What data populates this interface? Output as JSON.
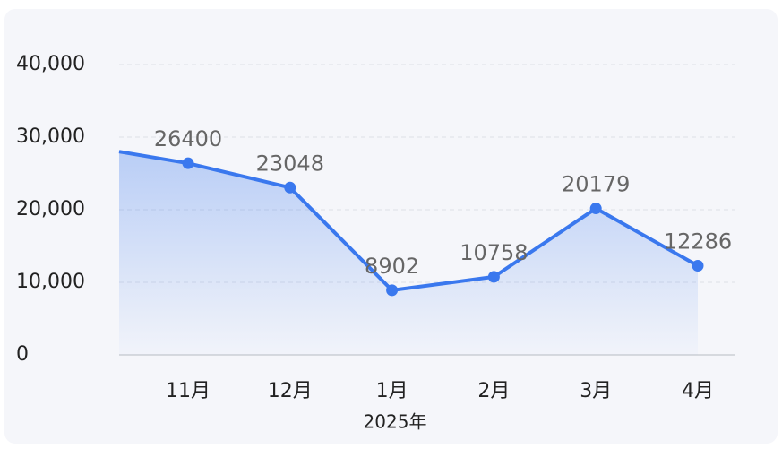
{
  "chart_data": {
    "type": "line",
    "categories": [
      null,
      "11月",
      "12月",
      "1月",
      "2月",
      "3月",
      "4月"
    ],
    "values": [
      28000,
      26400,
      23048,
      8902,
      10758,
      20179,
      12286
    ],
    "x_label": "2025年",
    "color": "#3a78ee",
    "ylim": [
      0,
      40000
    ],
    "yticks": [
      0,
      {
        "value": 10000,
        "label": "10,000"
      },
      {
        "value": 20000,
        "label": "20,000"
      },
      {
        "value": 30000,
        "label": "30,000"
      },
      {
        "value": 40000,
        "label": "40,000"
      }
    ],
    "grid": true
  }
}
